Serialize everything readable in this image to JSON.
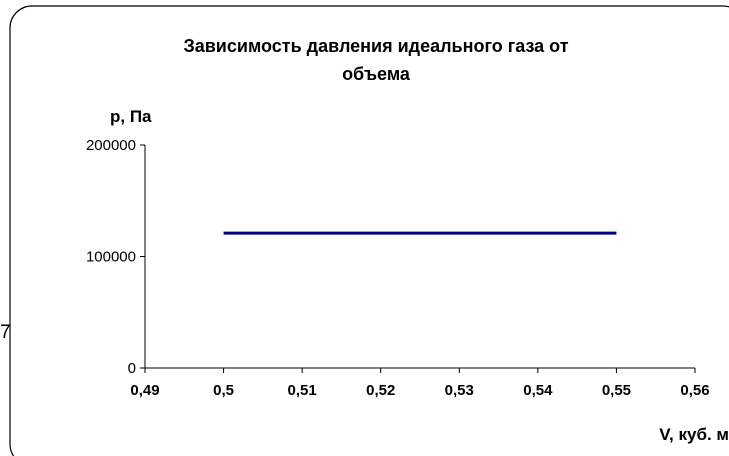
{
  "chart_data": {
    "type": "line",
    "title_lines": [
      "Зависимость давления идеального газа от",
      "объема"
    ],
    "xlabel": "V, куб. м",
    "ylabel": "p, Па",
    "xlim": [
      0.49,
      0.56
    ],
    "ylim": [
      0,
      200000
    ],
    "x_ticks": [
      0.49,
      0.5,
      0.51,
      0.52,
      0.53,
      0.54,
      0.55,
      0.56
    ],
    "x_tick_labels": [
      "0,49",
      "0,5",
      "0,51",
      "0,52",
      "0,53",
      "0,54",
      "0,55",
      "0,56"
    ],
    "y_ticks": [
      0,
      100000,
      200000
    ],
    "y_tick_labels": [
      "0",
      "100000",
      "200000"
    ],
    "grid": false,
    "legend": "none",
    "series": [
      {
        "color": "#000080",
        "x": [
          0.5,
          0.55
        ],
        "y": [
          121000,
          121000
        ]
      }
    ]
  },
  "side_note": "7"
}
